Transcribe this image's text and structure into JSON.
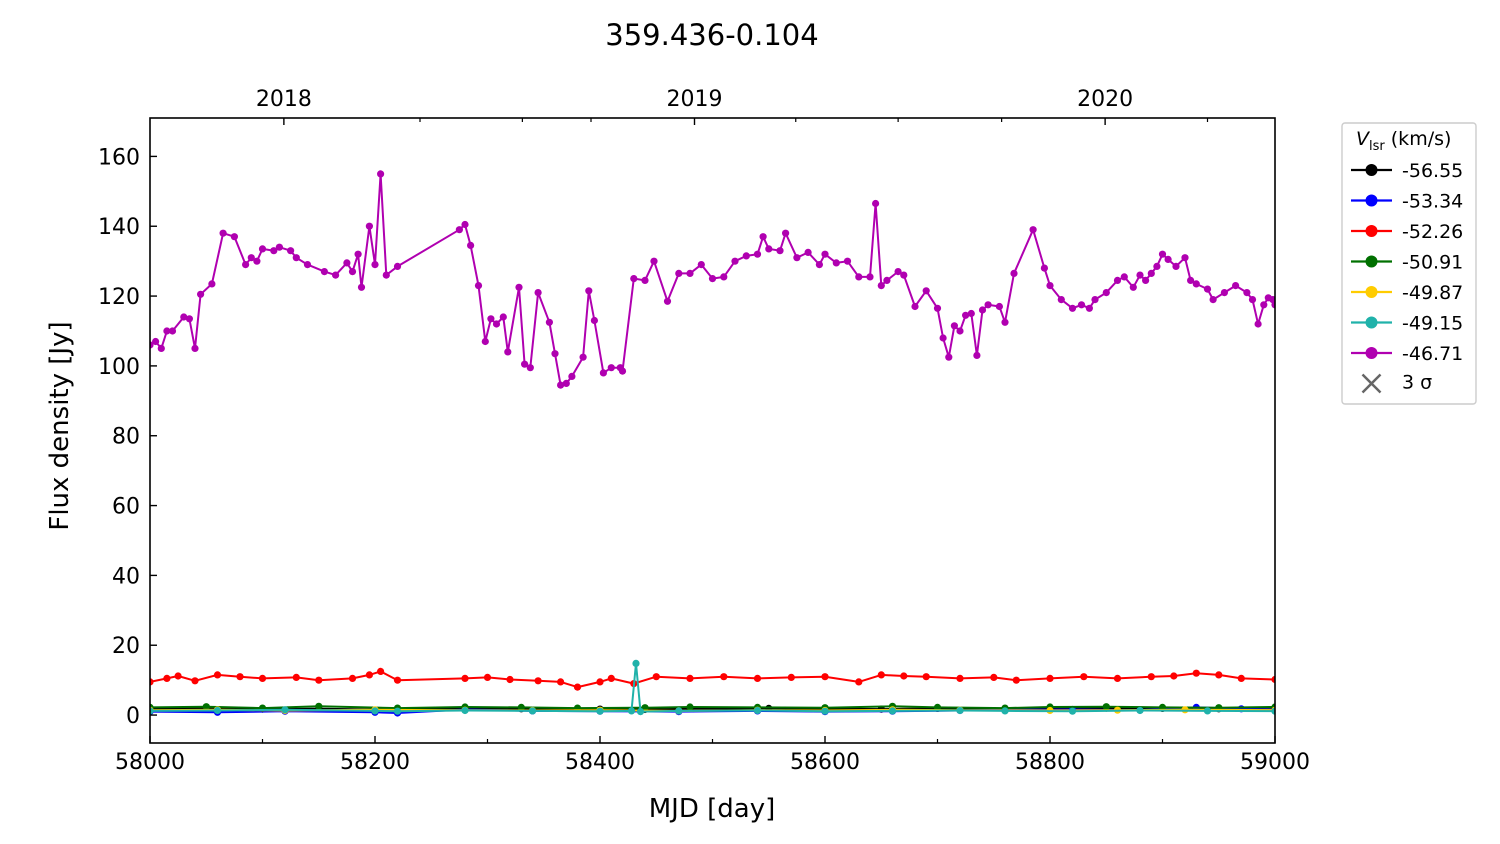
{
  "chart_data": {
    "type": "line",
    "title": "359.436-0.104",
    "xlabel": "MJD [day]",
    "ylabel": "Flux density [Jy]",
    "xlim": [
      58000,
      59000
    ],
    "ylim": [
      -8,
      171
    ],
    "x_ticks": [
      58000,
      58200,
      58400,
      58600,
      58800,
      59000
    ],
    "y_ticks": [
      0,
      20,
      40,
      60,
      80,
      100,
      120,
      140,
      160
    ],
    "top_axis": {
      "ticks": [
        {
          "label": "2018",
          "mjd": 58119
        },
        {
          "label": "2019",
          "mjd": 58484
        },
        {
          "label": "2020",
          "mjd": 58849
        }
      ],
      "minor_mjd": [
        58240,
        58331,
        58392,
        58574,
        58665,
        58757,
        58940
      ]
    },
    "grid": false,
    "legend": {
      "title_symbol": "V",
      "title_subscript": "lsr",
      "title_unit": " (km/s)",
      "placement": "outside-right",
      "sigma_label": "3 σ",
      "sigma_color": "#666666"
    },
    "series": [
      {
        "name": "-56.55",
        "color": "#000000",
        "points": [
          [
            58000,
            1.8
          ],
          [
            58050,
            1.9
          ],
          [
            58100,
            1.7
          ],
          [
            58150,
            1.8
          ],
          [
            58220,
            1.5
          ],
          [
            58280,
            1.9
          ],
          [
            58330,
            1.8
          ],
          [
            58400,
            1.7
          ],
          [
            58440,
            1.6
          ],
          [
            58480,
            1.8
          ],
          [
            58550,
            1.9
          ],
          [
            58600,
            1.8
          ],
          [
            58650,
            1.7
          ],
          [
            58700,
            1.9
          ],
          [
            58760,
            1.7
          ],
          [
            58800,
            1.8
          ],
          [
            58850,
            2.0
          ],
          [
            58900,
            1.9
          ],
          [
            58950,
            1.8
          ],
          [
            59000,
            1.7
          ]
        ]
      },
      {
        "name": "-53.34",
        "color": "#0000ff",
        "points": [
          [
            58000,
            1.0
          ],
          [
            58060,
            0.8
          ],
          [
            58120,
            1.1
          ],
          [
            58200,
            0.8
          ],
          [
            58220,
            0.6
          ],
          [
            58280,
            1.6
          ],
          [
            58340,
            1.2
          ],
          [
            58400,
            1.1
          ],
          [
            58470,
            1.0
          ],
          [
            58540,
            1.2
          ],
          [
            58600,
            1.0
          ],
          [
            58660,
            1.1
          ],
          [
            58720,
            1.3
          ],
          [
            58760,
            1.5
          ],
          [
            58820,
            1.6
          ],
          [
            58880,
            1.4
          ],
          [
            58930,
            2.2
          ],
          [
            58970,
            1.8
          ],
          [
            59000,
            1.5
          ]
        ]
      },
      {
        "name": "-52.26",
        "color": "#ff0000",
        "points": [
          [
            58000,
            9.5
          ],
          [
            58015,
            10.5
          ],
          [
            58025,
            11.2
          ],
          [
            58040,
            9.8
          ],
          [
            58060,
            11.5
          ],
          [
            58080,
            11.0
          ],
          [
            58100,
            10.5
          ],
          [
            58130,
            10.8
          ],
          [
            58150,
            10.0
          ],
          [
            58180,
            10.5
          ],
          [
            58195,
            11.5
          ],
          [
            58205,
            12.5
          ],
          [
            58220,
            10.0
          ],
          [
            58280,
            10.5
          ],
          [
            58300,
            10.8
          ],
          [
            58320,
            10.2
          ],
          [
            58345,
            9.8
          ],
          [
            58365,
            9.5
          ],
          [
            58380,
            8.0
          ],
          [
            58400,
            9.5
          ],
          [
            58410,
            10.5
          ],
          [
            58430,
            9.0
          ],
          [
            58450,
            11.0
          ],
          [
            58480,
            10.5
          ],
          [
            58510,
            11.0
          ],
          [
            58540,
            10.5
          ],
          [
            58570,
            10.8
          ],
          [
            58600,
            11.0
          ],
          [
            58630,
            9.5
          ],
          [
            58650,
            11.5
          ],
          [
            58670,
            11.2
          ],
          [
            58690,
            11.0
          ],
          [
            58720,
            10.5
          ],
          [
            58750,
            10.8
          ],
          [
            58770,
            10.0
          ],
          [
            58800,
            10.5
          ],
          [
            58830,
            11.0
          ],
          [
            58860,
            10.5
          ],
          [
            58890,
            11.0
          ],
          [
            58910,
            11.2
          ],
          [
            58930,
            12.0
          ],
          [
            58950,
            11.5
          ],
          [
            58970,
            10.5
          ],
          [
            59000,
            10.2
          ]
        ]
      },
      {
        "name": "-50.91",
        "color": "#007000",
        "points": [
          [
            58000,
            2.2
          ],
          [
            58050,
            2.4
          ],
          [
            58100,
            2.0
          ],
          [
            58150,
            2.5
          ],
          [
            58220,
            2.0
          ],
          [
            58280,
            2.3
          ],
          [
            58330,
            2.2
          ],
          [
            58380,
            2.0
          ],
          [
            58440,
            2.1
          ],
          [
            58480,
            2.3
          ],
          [
            58540,
            2.2
          ],
          [
            58600,
            2.1
          ],
          [
            58660,
            2.5
          ],
          [
            58700,
            2.2
          ],
          [
            58760,
            2.0
          ],
          [
            58800,
            2.3
          ],
          [
            58850,
            2.4
          ],
          [
            58900,
            2.2
          ],
          [
            58950,
            2.1
          ],
          [
            59000,
            2.3
          ]
        ]
      },
      {
        "name": "-49.87",
        "color": "#ffcc00",
        "points": [
          [
            58000,
            1.4
          ],
          [
            58060,
            1.5
          ],
          [
            58120,
            1.3
          ],
          [
            58200,
            1.5
          ],
          [
            58280,
            1.4
          ],
          [
            58340,
            1.3
          ],
          [
            58400,
            1.4
          ],
          [
            58470,
            1.2
          ],
          [
            58540,
            1.4
          ],
          [
            58600,
            1.3
          ],
          [
            58660,
            1.5
          ],
          [
            58720,
            1.4
          ],
          [
            58800,
            1.3
          ],
          [
            58860,
            1.4
          ],
          [
            58920,
            1.5
          ],
          [
            59000,
            1.4
          ]
        ]
      },
      {
        "name": "-49.15",
        "color": "#20b2aa",
        "points": [
          [
            58000,
            1.2
          ],
          [
            58060,
            1.3
          ],
          [
            58120,
            1.5
          ],
          [
            58200,
            1.2
          ],
          [
            58220,
            1.1
          ],
          [
            58280,
            1.3
          ],
          [
            58340,
            1.2
          ],
          [
            58400,
            1.1
          ],
          [
            58428,
            1.2
          ],
          [
            58432,
            14.8
          ],
          [
            58436,
            1.0
          ],
          [
            58470,
            1.2
          ],
          [
            58540,
            1.3
          ],
          [
            58600,
            1.1
          ],
          [
            58660,
            1.2
          ],
          [
            58720,
            1.3
          ],
          [
            58760,
            1.2
          ],
          [
            58820,
            1.1
          ],
          [
            58880,
            1.3
          ],
          [
            58940,
            1.2
          ],
          [
            59000,
            1.1
          ]
        ]
      },
      {
        "name": "-46.71",
        "color": "#b000b0",
        "points": [
          [
            58000,
            106
          ],
          [
            58005,
            107
          ],
          [
            58010,
            105
          ],
          [
            58015,
            110
          ],
          [
            58020,
            110
          ],
          [
            58030,
            114
          ],
          [
            58035,
            113.5
          ],
          [
            58040,
            105
          ],
          [
            58045,
            120.5
          ],
          [
            58055,
            123.5
          ],
          [
            58065,
            138
          ],
          [
            58075,
            137
          ],
          [
            58085,
            129
          ],
          [
            58090,
            131
          ],
          [
            58095,
            130
          ],
          [
            58100,
            133.5
          ],
          [
            58110,
            133
          ],
          [
            58115,
            134
          ],
          [
            58125,
            133
          ],
          [
            58130,
            131
          ],
          [
            58140,
            129
          ],
          [
            58155,
            127
          ],
          [
            58165,
            126
          ],
          [
            58175,
            129.5
          ],
          [
            58180,
            127
          ],
          [
            58185,
            132
          ],
          [
            58188,
            122.5
          ],
          [
            58195,
            140
          ],
          [
            58200,
            129
          ],
          [
            58205,
            155
          ],
          [
            58210,
            126
          ],
          [
            58220,
            128.5
          ],
          [
            58275,
            139
          ],
          [
            58280,
            140.5
          ],
          [
            58285,
            134.5
          ],
          [
            58292,
            123
          ],
          [
            58298,
            107
          ],
          [
            58303,
            113.5
          ],
          [
            58308,
            112
          ],
          [
            58314,
            114
          ],
          [
            58318,
            104
          ],
          [
            58328,
            122.5
          ],
          [
            58333,
            100.5
          ],
          [
            58338,
            99.5
          ],
          [
            58345,
            121
          ],
          [
            58355,
            112.5
          ],
          [
            58360,
            103.5
          ],
          [
            58365,
            94.5
          ],
          [
            58370,
            95
          ],
          [
            58375,
            97
          ],
          [
            58385,
            102.5
          ],
          [
            58390,
            121.5
          ],
          [
            58395,
            113
          ],
          [
            58403,
            98
          ],
          [
            58410,
            99.5
          ],
          [
            58418,
            99.5
          ],
          [
            58420,
            98.5
          ],
          [
            58430,
            125
          ],
          [
            58440,
            124.5
          ],
          [
            58448,
            130
          ],
          [
            58460,
            118.5
          ],
          [
            58470,
            126.5
          ],
          [
            58480,
            126.5
          ],
          [
            58490,
            129
          ],
          [
            58500,
            125
          ],
          [
            58510,
            125.5
          ],
          [
            58520,
            130
          ],
          [
            58530,
            131.5
          ],
          [
            58540,
            132
          ],
          [
            58545,
            137
          ],
          [
            58550,
            133.5
          ],
          [
            58560,
            133
          ],
          [
            58565,
            138
          ],
          [
            58575,
            131
          ],
          [
            58585,
            132.5
          ],
          [
            58595,
            129
          ],
          [
            58600,
            132
          ],
          [
            58610,
            129.5
          ],
          [
            58620,
            130
          ],
          [
            58630,
            125.5
          ],
          [
            58640,
            125.5
          ],
          [
            58645,
            146.5
          ],
          [
            58650,
            123
          ],
          [
            58655,
            124.5
          ],
          [
            58665,
            127
          ],
          [
            58670,
            126
          ],
          [
            58680,
            117
          ],
          [
            58690,
            121.5
          ],
          [
            58700,
            116.5
          ],
          [
            58705,
            108
          ],
          [
            58710,
            102.5
          ],
          [
            58715,
            111.5
          ],
          [
            58720,
            110
          ],
          [
            58725,
            114.5
          ],
          [
            58730,
            115
          ],
          [
            58735,
            103
          ],
          [
            58740,
            116
          ],
          [
            58745,
            117.5
          ],
          [
            58755,
            117
          ],
          [
            58760,
            112.5
          ],
          [
            58768,
            126.5
          ],
          [
            58785,
            139
          ],
          [
            58795,
            128
          ],
          [
            58800,
            123
          ],
          [
            58810,
            119
          ],
          [
            58820,
            116.5
          ],
          [
            58828,
            117.5
          ],
          [
            58835,
            116.5
          ],
          [
            58840,
            119
          ],
          [
            58850,
            121
          ],
          [
            58860,
            124.5
          ],
          [
            58866,
            125.5
          ],
          [
            58874,
            122.5
          ],
          [
            58880,
            126
          ],
          [
            58885,
            124.5
          ],
          [
            58890,
            126.5
          ],
          [
            58895,
            128.5
          ],
          [
            58900,
            132
          ],
          [
            58905,
            130.5
          ],
          [
            58912,
            128.5
          ],
          [
            58920,
            131
          ],
          [
            58925,
            124.5
          ],
          [
            58930,
            123.5
          ],
          [
            58940,
            122
          ],
          [
            58945,
            119
          ],
          [
            58955,
            121
          ],
          [
            58965,
            123
          ],
          [
            58975,
            121
          ],
          [
            58980,
            119
          ],
          [
            58985,
            112
          ],
          [
            58990,
            117.5
          ],
          [
            58994,
            119.5
          ],
          [
            58998,
            119
          ],
          [
            59000,
            117.5
          ]
        ]
      }
    ]
  }
}
